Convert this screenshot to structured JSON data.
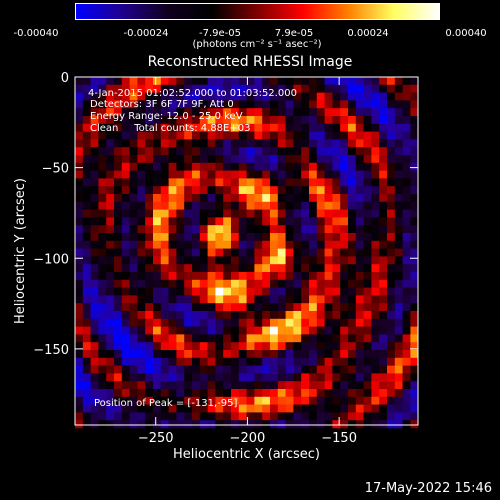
{
  "colorbar": {
    "ticks": [
      "-0.00040",
      "-0.00024",
      "-7.9e-05",
      "7.9e-05",
      "0.00024",
      "0.00040"
    ],
    "units": "(photons cm⁻² s⁻¹ asec⁻²)",
    "colors": [
      "#0000ff",
      "#200090",
      "#100020",
      "#000000",
      "#800000",
      "#ff0000",
      "#ff8000",
      "#ffff60",
      "#ffffff"
    ]
  },
  "chart_data": {
    "type": "heatmap",
    "title": "Reconstructed RHESSI Image",
    "xlabel": "Heliocentric X (arcsec)",
    "ylabel": "Heliocentric Y (arcsec)",
    "xlim": [
      -294,
      -107
    ],
    "ylim": [
      -192,
      0
    ],
    "xticks": [
      -250,
      -200,
      -150
    ],
    "yticks": [
      0,
      -50,
      -100,
      -150
    ],
    "colorbar_range": [
      -0.0004,
      0.0004
    ],
    "peak": [
      -131,
      -95
    ]
  },
  "annotations": {
    "time_range": "4-Jan-2015 01:02:52.000 to 01:03:52.000",
    "detectors": "Detectors: 3F 6F 7F 9F, Att 0",
    "energy": "Energy Range: 12.0 - 25.0 keV",
    "clean": "Clean     Total counts: 4.88E+03",
    "peak": "Position of Peak = [-131,-95]"
  },
  "timestamp": "17-May-2022 15:46"
}
